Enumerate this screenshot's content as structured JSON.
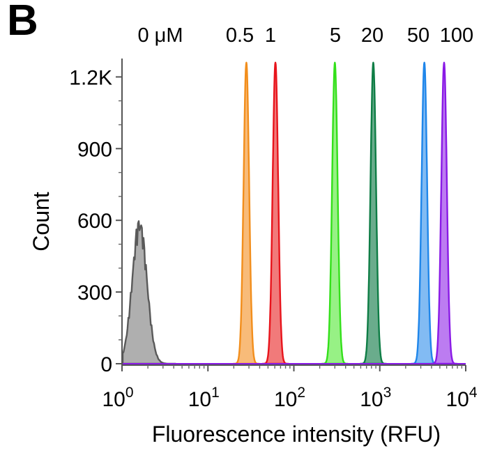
{
  "panel_label": "B",
  "chart_data": {
    "type": "area",
    "xlabel": "Fluorescence intensity (RFU)",
    "ylabel": "Count",
    "xscale": "log",
    "xlim": [
      1,
      10000
    ],
    "ylim": [
      0,
      1300
    ],
    "x_ticks": [
      {
        "value": 1,
        "base": "10",
        "exp": "0"
      },
      {
        "value": 10,
        "base": "10",
        "exp": "1"
      },
      {
        "value": 100,
        "base": "10",
        "exp": "2"
      },
      {
        "value": 1000,
        "base": "10",
        "exp": "3"
      },
      {
        "value": 10000,
        "base": "10",
        "exp": "4"
      }
    ],
    "y_ticks": [
      {
        "value": 0,
        "label": "0"
      },
      {
        "value": 300,
        "label": "300"
      },
      {
        "value": 600,
        "label": "600"
      },
      {
        "value": 900,
        "label": "900"
      },
      {
        "value": 1200,
        "label": "1.2K"
      }
    ],
    "grid": false,
    "legend": "none",
    "series": [
      {
        "name": "0 μM",
        "dose_label": "0 μM",
        "peak_x": 1.6,
        "peak_count": 580,
        "color": "#595959",
        "fill": "#a6a6a6"
      },
      {
        "name": "0.5",
        "dose_label": "0.5",
        "peak_x": 28,
        "peak_count": 1260,
        "color": "#f28e1c",
        "fill": "#f7b46a"
      },
      {
        "name": "1",
        "dose_label": "1",
        "peak_x": 61,
        "peak_count": 1260,
        "color": "#e8141c",
        "fill": "#ef6b6b"
      },
      {
        "name": "5",
        "dose_label": "5",
        "peak_x": 300,
        "peak_count": 1260,
        "color": "#33e01a",
        "fill": "#8cf078"
      },
      {
        "name": "20",
        "dose_label": "20",
        "peak_x": 840,
        "peak_count": 1260,
        "color": "#0e7d45",
        "fill": "#5aa37f"
      },
      {
        "name": "50",
        "dose_label": "50",
        "peak_x": 3300,
        "peak_count": 1260,
        "color": "#1f86ea",
        "fill": "#74b4f2"
      },
      {
        "name": "100",
        "dose_label": "100",
        "peak_x": 5600,
        "peak_count": 1260,
        "color": "#8a1ae6",
        "fill": "#b56ef0"
      }
    ]
  }
}
